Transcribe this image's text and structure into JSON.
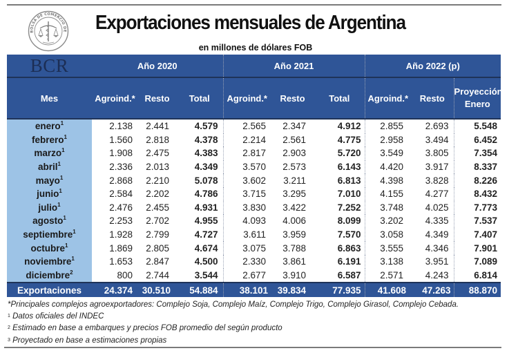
{
  "header": {
    "title": "Exportaciones mensuales de Argentina",
    "subtitle": "en millones de dólares FOB",
    "logo_name": "Bolsa de Comercio de Rosario seal",
    "logo_ring_text": "BOLSA DE COMERCIO DE ROSARIO",
    "brand": "BCR"
  },
  "table": {
    "year_groups": [
      "Año 2020",
      "Año 2021",
      "Año 2022 (p)"
    ],
    "columns": {
      "mes": "Mes",
      "agroind": "Agroind.*",
      "resto": "Resto",
      "total": "Total",
      "proyeccion_line1": "Proyección",
      "proyeccion_line2": "Enero"
    },
    "rows": [
      {
        "mes": "enero",
        "note": "1",
        "y2020": [
          "2.138",
          "2.441",
          "4.579"
        ],
        "y2021": [
          "2.565",
          "2.347",
          "4.912"
        ],
        "y2022": [
          "2.855",
          "2.693",
          "5.548"
        ]
      },
      {
        "mes": "febrero",
        "note": "1",
        "y2020": [
          "1.560",
          "2.818",
          "4.378"
        ],
        "y2021": [
          "2.214",
          "2.561",
          "4.775"
        ],
        "y2022": [
          "2.958",
          "3.494",
          "6.452"
        ]
      },
      {
        "mes": "marzo",
        "note": "1",
        "y2020": [
          "1.908",
          "2.475",
          "4.383"
        ],
        "y2021": [
          "2.817",
          "2.903",
          "5.720"
        ],
        "y2022": [
          "3.549",
          "3.805",
          "7.354"
        ]
      },
      {
        "mes": "abril",
        "note": "1",
        "y2020": [
          "2.336",
          "2.013",
          "4.349"
        ],
        "y2021": [
          "3.570",
          "2.573",
          "6.143"
        ],
        "y2022": [
          "4.420",
          "3.917",
          "8.337"
        ]
      },
      {
        "mes": "mayo",
        "note": "1",
        "y2020": [
          "2.868",
          "2.210",
          "5.078"
        ],
        "y2021": [
          "3.602",
          "3.211",
          "6.813"
        ],
        "y2022": [
          "4.398",
          "3.828",
          "8.226"
        ]
      },
      {
        "mes": "junio",
        "note": "1",
        "y2020": [
          "2.584",
          "2.202",
          "4.786"
        ],
        "y2021": [
          "3.715",
          "3.295",
          "7.010"
        ],
        "y2022": [
          "4.155",
          "4.277",
          "8.432"
        ]
      },
      {
        "mes": "julio",
        "note": "1",
        "y2020": [
          "2.476",
          "2.455",
          "4.931"
        ],
        "y2021": [
          "3.830",
          "3.422",
          "7.252"
        ],
        "y2022": [
          "3.748",
          "4.025",
          "7.773"
        ]
      },
      {
        "mes": "agosto",
        "note": "1",
        "y2020": [
          "2.253",
          "2.702",
          "4.955"
        ],
        "y2021": [
          "4.093",
          "4.006",
          "8.099"
        ],
        "y2022": [
          "3.202",
          "4.335",
          "7.537"
        ]
      },
      {
        "mes": "septiembre",
        "note": "1",
        "y2020": [
          "1.928",
          "2.799",
          "4.727"
        ],
        "y2021": [
          "3.611",
          "3.959",
          "7.570"
        ],
        "y2022": [
          "3.058",
          "4.349",
          "7.407"
        ]
      },
      {
        "mes": "octubre",
        "note": "1",
        "y2020": [
          "1.869",
          "2.805",
          "4.674"
        ],
        "y2021": [
          "3.075",
          "3.788",
          "6.863"
        ],
        "y2022": [
          "3.555",
          "4.346",
          "7.901"
        ]
      },
      {
        "mes": "noviembre",
        "note": "1",
        "y2020": [
          "1.653",
          "2.847",
          "4.500"
        ],
        "y2021": [
          "2.330",
          "3.861",
          "6.191"
        ],
        "y2022": [
          "3.138",
          "3.951",
          "7.089"
        ]
      },
      {
        "mes": "diciembre",
        "note": "2",
        "y2020": [
          "800",
          "2.744",
          "3.544"
        ],
        "y2021": [
          "2.677",
          "3.910",
          "6.587"
        ],
        "y2022": [
          "2.571",
          "4.243",
          "6.814"
        ]
      }
    ],
    "totals": {
      "label": "Exportaciones",
      "y2020": [
        "24.374",
        "30.510",
        "54.884"
      ],
      "y2021": [
        "38.101",
        "39.834",
        "77.935"
      ],
      "y2022": [
        "41.608",
        "47.263",
        "88.870"
      ]
    }
  },
  "footnotes": {
    "asterisk": "*Principales complejos agroexportadores: Complejo Soja, Complejo Maíz, Complejo Trigo, Complejo Girasol, Complejo Cebada.",
    "n1_mark": "1",
    "n1": "Datos oficiales del INDEC",
    "n2_mark": "2",
    "n2": "Estimado en base a embarques y precios FOB promedio del según producto",
    "n3_mark": "3",
    "n3": "Proyectado en base a estimaciones propias"
  },
  "colors": {
    "header_blue": "#2f5597",
    "month_column_blue": "#9dc3e6",
    "bcr_text": "#1c2e55"
  }
}
